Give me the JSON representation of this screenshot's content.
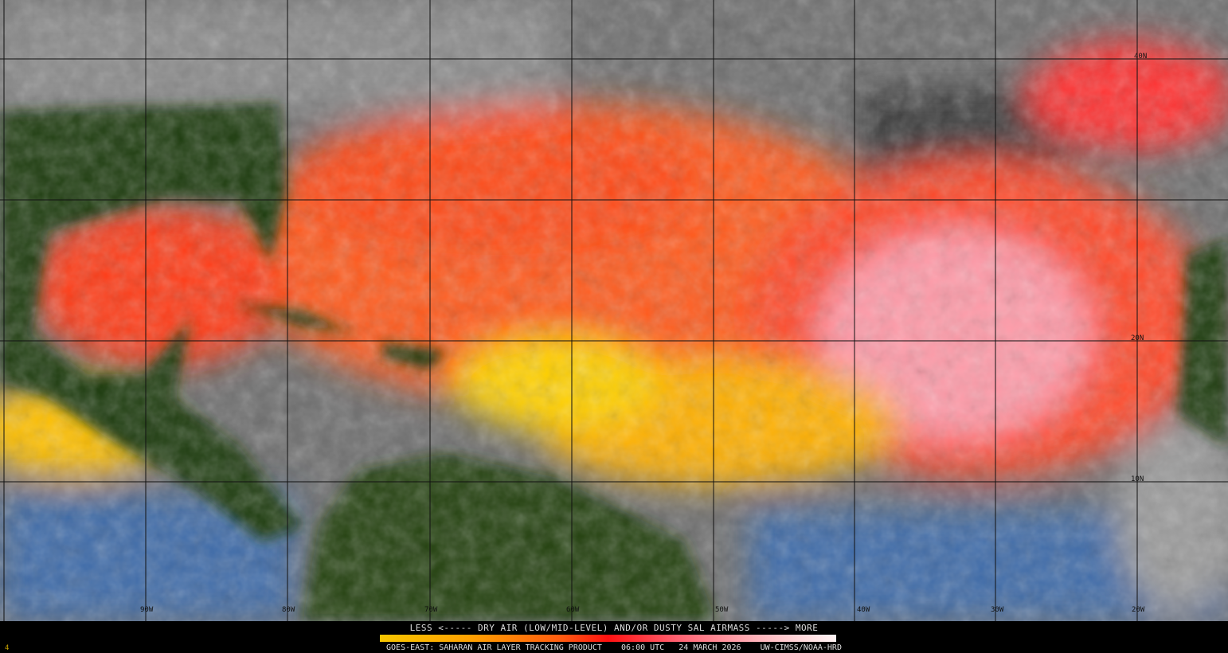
{
  "map": {
    "product": "Saharan Air Layer tracking (GOES-East)",
    "longitude_labels": [
      "90W",
      "80W",
      "70W",
      "60W",
      "50W",
      "40W",
      "30W",
      "20W"
    ],
    "latitude_labels": [
      "40N",
      "20N",
      "10N"
    ],
    "colors": {
      "land": "#1f3a10",
      "cloud": "#7a7a7a",
      "ocean_moist": "#3d6aa8",
      "dry_low": "#f7d000",
      "dry_mid": "#ff6a10",
      "dry_high": "#ff1a1a",
      "dry_max": "#ffb0c0"
    }
  },
  "footer": {
    "legend_title": "LESS <----- DRY AIR (LOW/MID-LEVEL) AND/OR DUSTY SAL AIRMASS -----> MORE",
    "product_line": "GOES-EAST: SAHARAN AIR LAYER TRACKING PRODUCT    06:00 UTC   24 MARCH 2026    UW-CIMSS/NOAA-HRD",
    "frame_number": "4"
  }
}
